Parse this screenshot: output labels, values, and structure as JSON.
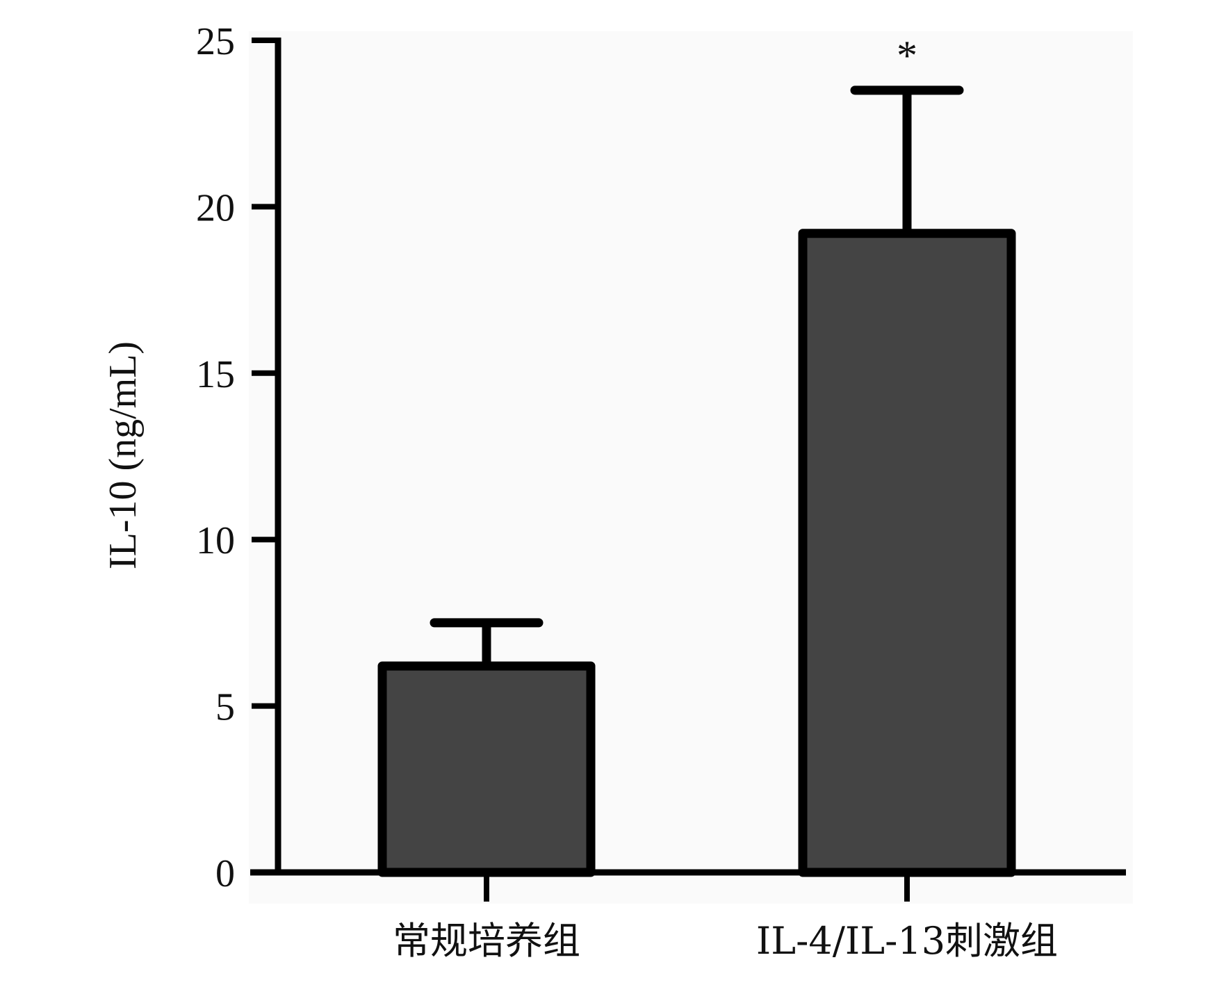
{
  "chart_data": {
    "type": "bar",
    "title": "",
    "xlabel": "",
    "ylabel": "IL-10 (ng/mL)",
    "ylim": [
      0,
      25
    ],
    "yticks": [
      0,
      5,
      10,
      15,
      20,
      25
    ],
    "categories": [
      "常规培养组",
      "IL-4/IL-13刺激组"
    ],
    "values": [
      6.2,
      19.2
    ],
    "errors": [
      1.3,
      4.3
    ],
    "significance": [
      "",
      "*"
    ],
    "grid": false,
    "legend": "none",
    "colors": {
      "bar_fill": "#444444",
      "bar_stroke": "#000000",
      "plot_background": "#fafafa"
    }
  }
}
